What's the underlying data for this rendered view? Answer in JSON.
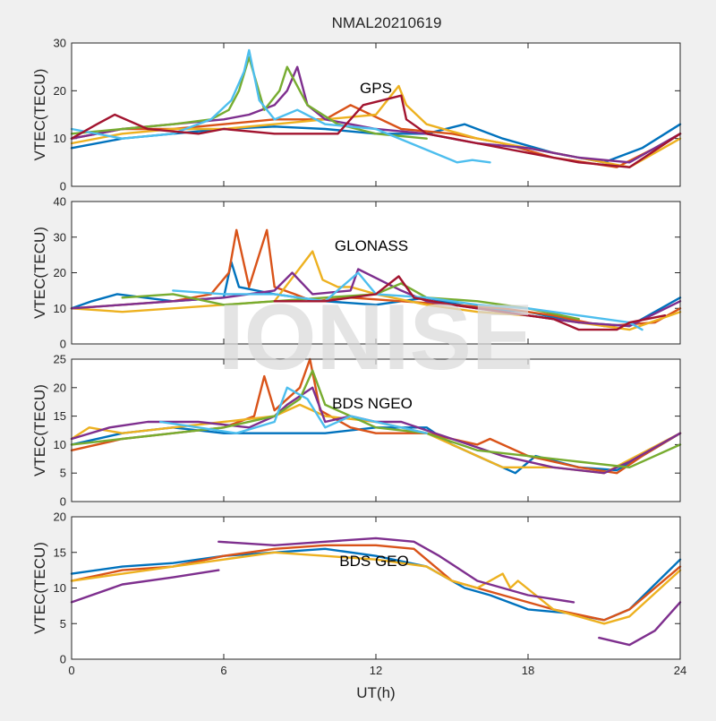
{
  "figure": {
    "title": "NMAL20210619",
    "watermark": "IONISE",
    "xlabel": "UT(h)",
    "background": "#f0f0f0",
    "palette": [
      "#0072bd",
      "#d95319",
      "#edb120",
      "#7e2f8e",
      "#77ac30",
      "#4dbeee",
      "#a2142f"
    ]
  },
  "chart_data": [
    {
      "type": "line",
      "label": "GPS",
      "ylabel": "VTEC(TECU)",
      "xlim": [
        0,
        24
      ],
      "ylim": [
        0,
        30
      ],
      "xticks": [
        0,
        6,
        12,
        18,
        24
      ],
      "yticks": [
        0,
        10,
        20,
        30
      ],
      "grid": false,
      "series": [
        {
          "color": "#0072bd",
          "x": [
            0,
            2,
            4,
            6,
            8,
            10,
            12,
            14,
            15.5,
            17,
            19,
            21,
            22.5,
            24
          ],
          "y": [
            8,
            10,
            11,
            12,
            12.5,
            12,
            11,
            11,
            13,
            10,
            7,
            5,
            8,
            13
          ]
        },
        {
          "color": "#d95319",
          "x": [
            0,
            2,
            4,
            6,
            8,
            10,
            11,
            13,
            15,
            17,
            19,
            21.5,
            23,
            24
          ],
          "y": [
            10,
            12,
            12,
            13,
            14,
            14,
            17,
            12,
            11,
            9,
            6,
            4,
            8,
            11
          ]
        },
        {
          "color": "#edb120",
          "x": [
            0,
            2,
            4,
            6,
            8,
            10,
            12,
            12.9,
            13.2,
            14,
            16,
            18,
            20,
            22,
            24
          ],
          "y": [
            9,
            11,
            12,
            12,
            13,
            14,
            15,
            21,
            17,
            13,
            10,
            8,
            6,
            4,
            10
          ]
        },
        {
          "color": "#7e2f8e",
          "x": [
            0,
            2,
            4,
            6,
            7,
            8,
            8.5,
            8.9,
            9.3,
            10,
            12,
            14,
            16,
            18,
            20,
            22,
            24
          ],
          "y": [
            10,
            12,
            13,
            14,
            15,
            17,
            20,
            25,
            17,
            14,
            12,
            11,
            9,
            8,
            6,
            5,
            11
          ]
        },
        {
          "color": "#77ac30",
          "x": [
            0,
            2,
            4,
            5.5,
            6.2,
            6.6,
            7,
            7.6,
            8.2,
            8.5,
            9.3,
            10.5,
            12,
            14
          ],
          "y": [
            11,
            12,
            13,
            14,
            16,
            20,
            27,
            16,
            20,
            25,
            17,
            13,
            11,
            10
          ]
        },
        {
          "color": "#4dbeee",
          "x": [
            0,
            2,
            4,
            5.5,
            6.3,
            6.8,
            7,
            7.4,
            8,
            8.9,
            10,
            12,
            15.2,
            15.8,
            16.5
          ],
          "y": [
            12,
            10,
            11,
            14,
            18,
            24,
            28.5,
            18,
            14,
            16,
            13,
            12,
            5,
            5.5,
            5
          ]
        },
        {
          "color": "#a2142f",
          "x": [
            0,
            1,
            1.7,
            3,
            5,
            6,
            8,
            10.5,
            11.5,
            13,
            13.2,
            14,
            16,
            18,
            20,
            22,
            24
          ],
          "y": [
            10,
            13,
            15,
            12,
            11,
            12,
            11,
            11,
            17,
            19,
            14,
            11,
            9,
            7,
            5,
            4,
            11
          ]
        }
      ]
    },
    {
      "type": "line",
      "label": "GLONASS",
      "ylabel": "VTEC(TECU)",
      "xlim": [
        0,
        24
      ],
      "ylim": [
        0,
        40
      ],
      "xticks": [
        0,
        6,
        12,
        18,
        24
      ],
      "yticks": [
        0,
        10,
        20,
        30,
        40
      ],
      "grid": false,
      "series": [
        {
          "color": "#0072bd",
          "x": [
            0,
            0.8,
            1.8,
            4,
            6,
            6.3,
            6.6,
            8,
            10,
            12,
            14,
            16,
            18,
            20,
            22,
            24
          ],
          "y": [
            10,
            12,
            14,
            12,
            13,
            23,
            16,
            14,
            12,
            11,
            13,
            10,
            9,
            6,
            5,
            13
          ]
        },
        {
          "color": "#d95319",
          "x": [
            0,
            2,
            4,
            5.5,
            6.2,
            6.5,
            7,
            7.7,
            8,
            8.8,
            9.5,
            11,
            13,
            15,
            17,
            19,
            21,
            23,
            24
          ],
          "y": [
            10,
            11,
            12,
            14,
            20,
            32,
            16,
            32,
            16,
            14,
            12,
            13,
            12,
            11,
            10,
            8,
            5,
            6,
            10
          ]
        },
        {
          "color": "#edb120",
          "x": [
            0,
            2,
            4,
            6,
            8,
            9.5,
            9.9,
            10.5,
            11,
            12,
            14,
            16,
            18,
            20,
            22,
            24
          ],
          "y": [
            10,
            9,
            10,
            11,
            12,
            26,
            18,
            16,
            16,
            14,
            11,
            9,
            8,
            6,
            4,
            9
          ]
        },
        {
          "color": "#7e2f8e",
          "x": [
            0,
            2,
            4,
            6,
            8,
            8.7,
            9.5,
            11,
            11.3,
            13,
            14,
            16,
            18,
            20,
            22,
            24
          ],
          "y": [
            10,
            11,
            12,
            13,
            15,
            20,
            14,
            15,
            21,
            15,
            12,
            10,
            8,
            6,
            5,
            12
          ]
        },
        {
          "color": "#77ac30",
          "x": [
            2,
            4,
            6,
            8,
            10,
            12,
            13,
            14,
            16,
            18,
            20
          ],
          "y": [
            13,
            14,
            11,
            12,
            13,
            14,
            17,
            13,
            12,
            10,
            7
          ]
        },
        {
          "color": "#4dbeee",
          "x": [
            4,
            6,
            8,
            10,
            11.3,
            12,
            14,
            16,
            18,
            20,
            22,
            22.5
          ],
          "y": [
            15,
            14,
            14,
            12,
            20,
            14,
            13,
            11,
            10,
            8,
            6,
            4
          ]
        },
        {
          "color": "#a2142f",
          "x": [
            8,
            10,
            12,
            12.9,
            13.5,
            15,
            17,
            19,
            20,
            21.5,
            22,
            23.4
          ],
          "y": [
            12,
            12,
            14,
            19,
            13,
            11,
            9,
            7,
            4,
            4,
            6,
            8
          ]
        }
      ]
    },
    {
      "type": "line",
      "label": "BDS NGEO",
      "ylabel": "VTEC(TECU)",
      "xlim": [
        0,
        24
      ],
      "ylim": [
        0,
        25
      ],
      "xticks": [
        0,
        6,
        12,
        18,
        24
      ],
      "yticks": [
        0,
        5,
        10,
        15,
        20,
        25
      ],
      "grid": false,
      "series": [
        {
          "color": "#0072bd",
          "x": [
            0,
            2,
            4,
            6,
            8,
            10,
            12,
            14,
            15,
            16,
            17.5,
            18.3,
            20,
            21.5,
            22.5,
            24
          ],
          "y": [
            10,
            12,
            13,
            12,
            12,
            12,
            13,
            13,
            10,
            8,
            5,
            8,
            6,
            5.5,
            8,
            12
          ]
        },
        {
          "color": "#d95319",
          "x": [
            0,
            2,
            4,
            6,
            7.2,
            7.6,
            8,
            9,
            9.4,
            9.8,
            11,
            12,
            14,
            16,
            16.5,
            18,
            20,
            21.5,
            22.5,
            24
          ],
          "y": [
            9,
            11,
            12,
            13,
            15,
            22,
            16,
            20,
            25,
            16,
            13,
            12,
            12,
            10,
            11,
            8,
            6,
            5,
            8,
            12
          ]
        },
        {
          "color": "#edb120",
          "x": [
            0,
            0.7,
            2,
            4,
            6,
            8,
            9,
            10,
            12,
            14,
            16,
            17,
            19,
            21,
            24
          ],
          "y": [
            11,
            13,
            12,
            13,
            14,
            15,
            17,
            15,
            14,
            12,
            8,
            6,
            6,
            5,
            12
          ]
        },
        {
          "color": "#7e2f8e",
          "x": [
            0,
            1.5,
            3,
            5,
            7,
            8,
            8.5,
            9.5,
            10,
            11,
            12,
            13,
            15,
            17,
            19,
            21,
            22,
            24
          ],
          "y": [
            11,
            13,
            14,
            14,
            13,
            15,
            17,
            20,
            14,
            15,
            14,
            14,
            11,
            8,
            6,
            5,
            7,
            12
          ]
        },
        {
          "color": "#77ac30",
          "x": [
            0,
            2,
            4,
            6,
            8,
            9,
            9.5,
            10,
            11,
            12,
            14,
            16,
            18,
            20,
            22,
            24
          ],
          "y": [
            10,
            11,
            12,
            13,
            15,
            18,
            23,
            17,
            15,
            13,
            12,
            9,
            8,
            7,
            6,
            10
          ]
        },
        {
          "color": "#4dbeee",
          "x": [
            3.5,
            5,
            6.5,
            8,
            8.5,
            9.3,
            10,
            11,
            12,
            13,
            14
          ],
          "y": [
            14,
            13,
            12,
            14,
            20,
            18,
            13,
            15,
            14,
            13,
            12
          ]
        }
      ]
    },
    {
      "type": "line",
      "label": "BDS GEO",
      "ylabel": "VTEC(TECU)",
      "xlim": [
        0,
        24
      ],
      "ylim": [
        0,
        20
      ],
      "xticks": [
        0,
        6,
        12,
        18,
        24
      ],
      "yticks": [
        0,
        5,
        10,
        15,
        20
      ],
      "grid": false,
      "series": [
        {
          "color": "#0072bd",
          "x": [
            0,
            2,
            4,
            6,
            8,
            10,
            12,
            14,
            15.5,
            16.5,
            18,
            19.5,
            21,
            22,
            24
          ],
          "y": [
            12,
            13,
            13.5,
            14.5,
            15,
            15.5,
            14.5,
            13,
            10,
            9,
            7,
            6.5,
            5.5,
            7,
            14
          ]
        },
        {
          "color": "#d95319",
          "x": [
            0,
            2,
            4,
            6,
            8,
            10,
            12,
            13.5,
            15,
            17,
            19,
            21,
            22,
            24
          ],
          "y": [
            11,
            12.5,
            13,
            14.5,
            15.5,
            16,
            16,
            15.5,
            11,
            9,
            7,
            5.5,
            7,
            13
          ]
        },
        {
          "color": "#edb120",
          "x": [
            0,
            2,
            4,
            6,
            8,
            10,
            12,
            14,
            15,
            16,
            17,
            17.3,
            17.6,
            19,
            21,
            22,
            24
          ],
          "y": [
            11,
            12,
            13,
            14,
            15,
            14.5,
            14,
            13,
            11,
            10,
            12,
            10,
            11,
            7,
            5,
            6,
            12.5
          ]
        },
        {
          "color": "#7e2f8e",
          "x": [
            0,
            2,
            4,
            5.8
          ],
          "y": [
            8,
            10.5,
            11.5,
            12.5
          ]
        },
        {
          "color": "#7e2f8e",
          "x": [
            5.8,
            8,
            10,
            12,
            13.5,
            14.5,
            16,
            18,
            19.8
          ],
          "y": [
            16.5,
            16,
            16.5,
            17,
            16.5,
            14.5,
            11,
            9,
            8
          ]
        },
        {
          "color": "#7e2f8e",
          "x": [
            20.8,
            22,
            23,
            24
          ],
          "y": [
            3,
            2,
            4,
            8
          ]
        }
      ]
    }
  ]
}
